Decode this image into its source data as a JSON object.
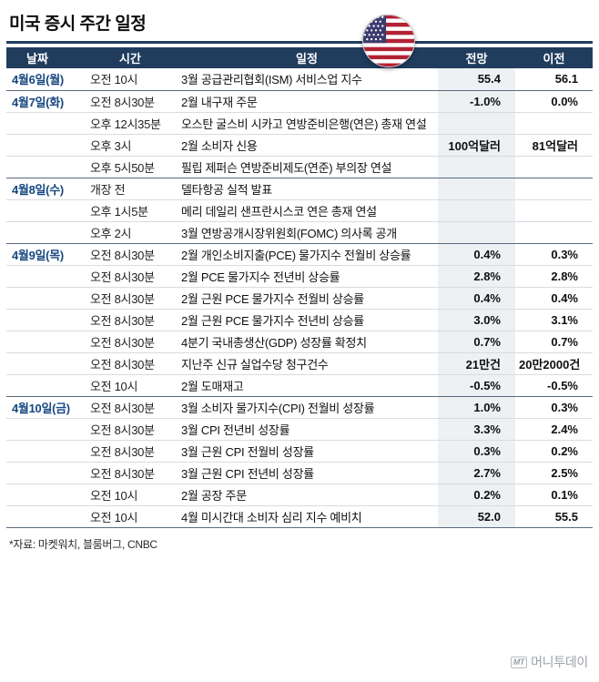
{
  "title": "미국 증시 주간 일정",
  "chart_data": {
    "type": "table",
    "title": "미국 증시 주간 일정",
    "headers": [
      "날짜",
      "시간",
      "일정",
      "전망",
      "이전"
    ],
    "rows": [
      [
        "4월6일(월)",
        "오전 10시",
        "3월 공급관리협회(ISM) 서비스업 지수",
        "55.4",
        "56.1"
      ],
      [
        "4월7일(화)",
        "오전 8시30분",
        "2월 내구재 주문",
        "-1.0%",
        "0.0%"
      ],
      [
        "",
        "오후 12시35분",
        "오스탄 굴스비 시카고 연방준비은행(연은) 총재 연설",
        "",
        ""
      ],
      [
        "",
        "오후 3시",
        "2월 소비자 신용",
        "100억달러",
        "81억달러"
      ],
      [
        "",
        "오후 5시50분",
        "필립 제퍼슨 연방준비제도(연준) 부의장 연설",
        "",
        ""
      ],
      [
        "4월8일(수)",
        "개장 전",
        "델타항공 실적 발표",
        "",
        ""
      ],
      [
        "",
        "오후 1시5분",
        "메리 데일리 샌프란시스코 연은 총재 연설",
        "",
        ""
      ],
      [
        "",
        "오후 2시",
        "3월 연방공개시장위원회(FOMC) 의사록 공개",
        "",
        ""
      ],
      [
        "4월9일(목)",
        "오전 8시30분",
        "2월 개인소비지출(PCE) 물가지수 전월비 상승률",
        "0.4%",
        "0.3%"
      ],
      [
        "",
        "오전 8시30분",
        "2월 PCE 물가지수 전년비 상승률",
        "2.8%",
        "2.8%"
      ],
      [
        "",
        "오전 8시30분",
        "2월 근원 PCE 물가지수 전월비 상승률",
        "0.4%",
        "0.4%"
      ],
      [
        "",
        "오전 8시30분",
        "2월 근원 PCE 물가지수 전년비 상승률",
        "3.0%",
        "3.1%"
      ],
      [
        "",
        "오전 8시30분",
        "4분기 국내총생산(GDP) 성장률 확정치",
        "0.7%",
        "0.7%"
      ],
      [
        "",
        "오전 8시30분",
        "지난주 신규 실업수당 청구건수",
        "21만건",
        "20만2000건"
      ],
      [
        "",
        "오전 10시",
        "2월 도매재고",
        "-0.5%",
        "-0.5%"
      ],
      [
        "4월10일(금)",
        "오전 8시30분",
        "3월 소비자 물가지수(CPI) 전월비 성장률",
        "1.0%",
        "0.3%"
      ],
      [
        "",
        "오전 8시30분",
        "3월 CPI 전년비 성장률",
        "3.3%",
        "2.4%"
      ],
      [
        "",
        "오전 8시30분",
        "3월 근원 CPI 전월비 성장률",
        "0.3%",
        "0.2%"
      ],
      [
        "",
        "오전 8시30분",
        "3월 근원 CPI 전년비 성장률",
        "2.7%",
        "2.5%"
      ],
      [
        "",
        "오전 10시",
        "2월 공장 주문",
        "0.2%",
        "0.1%"
      ],
      [
        "",
        "오전 10시",
        "4월 미시간대 소비자 심리 지수 예비치",
        "52.0",
        "55.5"
      ]
    ],
    "group_starts": [
      0,
      1,
      5,
      8,
      15
    ],
    "legend_position": "none",
    "grid": "horizontal-rules"
  },
  "footnote": "*자료: 마켓워치, 블룸버그, CNBC",
  "watermark": {
    "logo": "MT",
    "name": "머니투데이"
  },
  "icons": {
    "flag": "us-flag-icon",
    "logo_mark": "mt-logo-icon"
  },
  "colors": {
    "header_bg": "#203d5e",
    "title_rule": "#203d5e",
    "date_text": "#16477f",
    "forecast_col_bg": "#edf1f4",
    "row_border": "#d8dce0",
    "group_border": "#5a6b7d",
    "flag_red": "#b22234",
    "flag_blue": "#3c3b6e",
    "watermark_gray": "#9aa1a8"
  }
}
